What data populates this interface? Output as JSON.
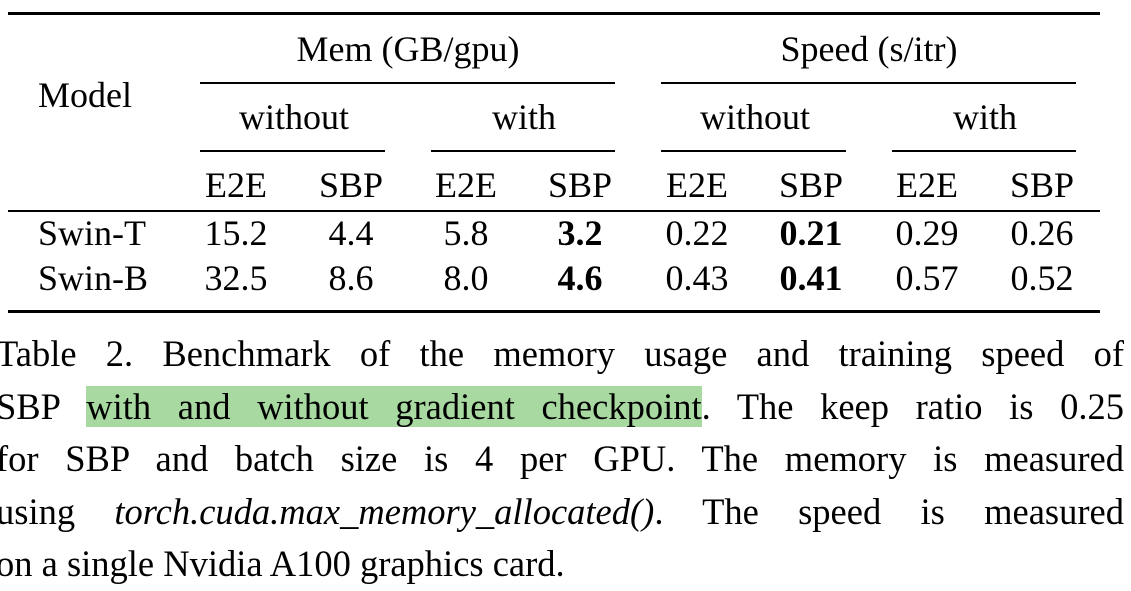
{
  "table": {
    "model_header": "Model",
    "group_headers": [
      "Mem (GB/gpu)",
      "Speed (s/itr)"
    ],
    "sub_headers": [
      "without",
      "with",
      "without",
      "with"
    ],
    "col_headers": [
      "E2E",
      "SBP",
      "E2E",
      "SBP",
      "E2E",
      "SBP",
      "E2E",
      "SBP"
    ],
    "rows": [
      {
        "model": "Swin-T",
        "values": [
          "15.2",
          "4.4",
          "5.8",
          "3.2",
          "0.22",
          "0.21",
          "0.29",
          "0.26"
        ]
      },
      {
        "model": "Swin-B",
        "values": [
          "32.5",
          "8.6",
          "8.0",
          "4.6",
          "0.43",
          "0.41",
          "0.57",
          "0.52"
        ]
      }
    ]
  },
  "caption": {
    "line1": "Table 2.  Benchmark of the memory usage and training speed of",
    "line2_pre": "SBP ",
    "line2_hl": "with and without gradient checkpoint",
    "line2_post": ". The keep ratio is 0.25",
    "line3": "for SBP and batch size is 4 per GPU. The memory is measured",
    "line4_pre": "using ",
    "line4_it": "torch.cuda.max_memory_allocated()",
    "line4_post": ". The speed is measured",
    "line5": "on a single Nvidia A100 graphics card."
  }
}
